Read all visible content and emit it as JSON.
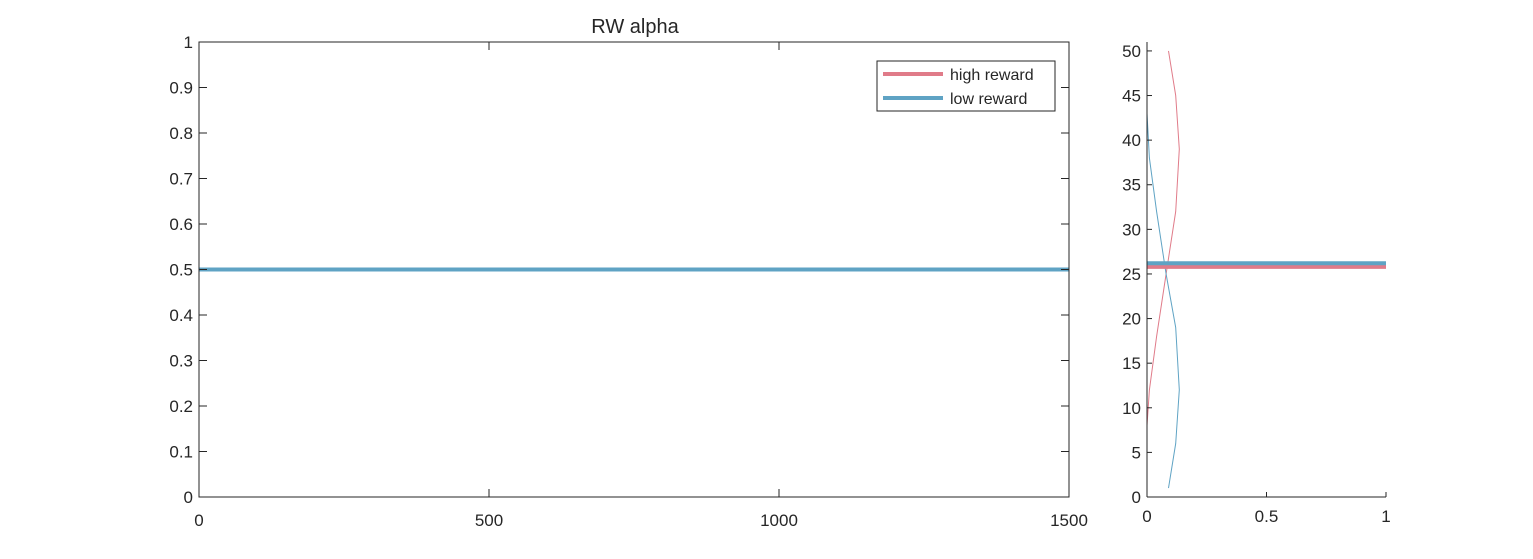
{
  "chart_data": [
    {
      "type": "line",
      "title": "RW  alpha",
      "xlabel": "",
      "ylabel": "",
      "xlim": [
        0,
        1500
      ],
      "ylim": [
        0,
        1
      ],
      "xticks": [
        0,
        500,
        1000,
        1500
      ],
      "yticks": [
        0,
        0.1,
        0.2,
        0.3,
        0.4,
        0.5,
        0.6,
        0.7,
        0.8,
        0.9,
        1
      ],
      "xtick_labels": [
        "0",
        "500",
        "1000",
        "1500"
      ],
      "ytick_labels": [
        "0",
        "0.1",
        "0.2",
        "0.3",
        "0.4",
        "0.5",
        "0.6",
        "0.7",
        "0.8",
        "0.9",
        "1"
      ],
      "grid": false,
      "legend_position": "top-right",
      "series": [
        {
          "name": "high reward",
          "color": "#e07b89",
          "x": [
            0,
            1500
          ],
          "y": [
            0.5,
            0.5
          ]
        },
        {
          "name": "low reward",
          "color": "#5fa3c4",
          "x": [
            0,
            1500
          ],
          "y": [
            0.5,
            0.5
          ]
        }
      ]
    },
    {
      "type": "line",
      "title": "",
      "xlabel": "",
      "ylabel": "",
      "xlim": [
        0,
        1
      ],
      "ylim": [
        0,
        51
      ],
      "xticks": [
        0,
        0.5,
        1
      ],
      "yticks": [
        0,
        5,
        10,
        15,
        20,
        25,
        30,
        35,
        40,
        45,
        50
      ],
      "xtick_labels": [
        "0",
        "0.5",
        "1"
      ],
      "ytick_labels": [
        "0",
        "5",
        "10",
        "15",
        "20",
        "25",
        "30",
        "35",
        "40",
        "45",
        "50"
      ],
      "grid": false,
      "series": [
        {
          "name": "high reward",
          "color": "#e07b89",
          "x": [
            0.0,
            0.0,
            0.0,
            0.01,
            0.04,
            0.08,
            0.12,
            0.135,
            0.12,
            0.09
          ],
          "y": [
            1,
            5,
            8,
            12,
            18,
            25,
            32,
            39,
            45,
            50
          ]
        },
        {
          "name": "low reward",
          "color": "#5fa3c4",
          "x": [
            0.09,
            0.12,
            0.135,
            0.12,
            0.08,
            0.04,
            0.01,
            0.0,
            0.0,
            0.0
          ],
          "y": [
            1,
            6,
            12,
            19,
            25,
            32,
            38,
            43,
            47,
            50
          ]
        }
      ],
      "horizontal_lines": [
        {
          "name": "high reward",
          "color": "#e07b89",
          "y": 25.8
        },
        {
          "name": "low reward",
          "color": "#5fa3c4",
          "y": 26.2
        }
      ]
    }
  ]
}
